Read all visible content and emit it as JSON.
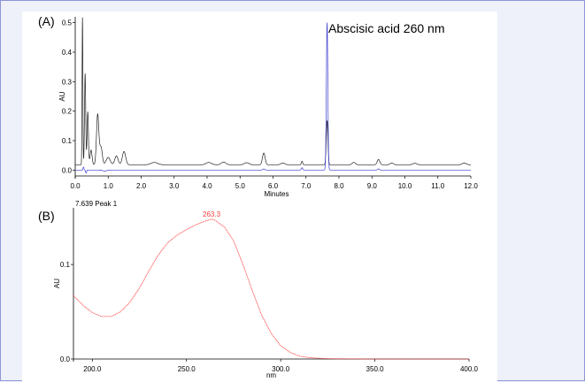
{
  "colors": {
    "page_bg": "#eef0fa",
    "border": "#8f96d8",
    "trace_black": "#222222",
    "trace_blue": "#3c3cd2",
    "spectrum_red": "#ff3b3b"
  },
  "chart_data": [
    {
      "type": "line",
      "panel_label": "(A)",
      "annotation": "Abscisic acid    260 nm",
      "xlabel": "Minutes",
      "ylabel": "AU",
      "xlim": [
        0,
        12
      ],
      "ylim": [
        -0.02,
        0.52
      ],
      "x_ticks": [
        "0.0",
        "1.0",
        "2.0",
        "3.0",
        "4.0",
        "5.0",
        "6.0",
        "7.0",
        "8.0",
        "9.0",
        "10.0",
        "11.0",
        "12.0"
      ],
      "y_ticks": [
        "0.0",
        "0.1",
        "0.2",
        "0.3",
        "0.4",
        "0.5"
      ],
      "series": [
        {
          "color": "#222222",
          "baseline": 0.018,
          "peaks": [
            [
              0.22,
              0.5,
              0.012
            ],
            [
              0.3,
              0.31,
              0.018
            ],
            [
              0.38,
              0.18,
              0.02
            ],
            [
              0.48,
              0.05,
              0.03
            ],
            [
              0.68,
              0.17,
              0.035
            ],
            [
              0.78,
              0.06,
              0.04
            ],
            [
              1.0,
              0.025,
              0.06
            ],
            [
              1.25,
              0.03,
              0.05
            ],
            [
              1.48,
              0.045,
              0.05
            ],
            [
              2.4,
              0.008,
              0.1
            ],
            [
              4.05,
              0.008,
              0.08
            ],
            [
              4.5,
              0.009,
              0.07
            ],
            [
              5.2,
              0.007,
              0.07
            ],
            [
              5.72,
              0.04,
              0.04
            ],
            [
              6.3,
              0.006,
              0.06
            ],
            [
              6.88,
              0.012,
              0.02
            ],
            [
              7.64,
              0.15,
              0.025
            ],
            [
              8.45,
              0.008,
              0.05
            ],
            [
              9.2,
              0.018,
              0.04
            ],
            [
              9.6,
              0.006,
              0.05
            ],
            [
              10.3,
              0.005,
              0.06
            ],
            [
              11.8,
              0.006,
              0.06
            ]
          ]
        },
        {
          "color": "#3c3cd2",
          "baseline": 0.0,
          "peaks": [
            [
              0.25,
              0.01,
              0.015
            ],
            [
              0.33,
              -0.01,
              0.015
            ],
            [
              0.9,
              -0.004,
              0.05
            ],
            [
              5.72,
              0.004,
              0.03
            ],
            [
              6.88,
              0.008,
              0.02
            ],
            [
              7.64,
              0.5,
              0.022
            ],
            [
              9.2,
              0.004,
              0.03
            ]
          ]
        }
      ]
    },
    {
      "type": "line",
      "panel_label": "(B)",
      "header": "7.639 Peak 1",
      "peak_label": "263.3",
      "xlabel": "nm",
      "ylabel": "AU",
      "xlim": [
        190,
        400
      ],
      "ylim": [
        0,
        0.16
      ],
      "x_ticks": [
        "200.0",
        "250.0",
        "300.0",
        "350.0",
        "400.0"
      ],
      "y_ticks": [
        "0.0",
        "0.1"
      ],
      "series": [
        {
          "name": "",
          "color": "#ff3b3b",
          "x": [
            190,
            195,
            200,
            205,
            210,
            215,
            220,
            225,
            230,
            235,
            240,
            245,
            250,
            255,
            260,
            263.3,
            265,
            270,
            275,
            280,
            285,
            290,
            295,
            300,
            305,
            310,
            315,
            320,
            325,
            330,
            340,
            350,
            360,
            370,
            380,
            390,
            400
          ],
          "y": [
            0.067,
            0.057,
            0.049,
            0.045,
            0.045,
            0.05,
            0.06,
            0.075,
            0.093,
            0.11,
            0.123,
            0.131,
            0.137,
            0.142,
            0.146,
            0.148,
            0.147,
            0.14,
            0.125,
            0.1,
            0.072,
            0.046,
            0.027,
            0.014,
            0.007,
            0.003,
            0.0015,
            0.0008,
            0.0004,
            0.0002,
            0.0001,
            0.0,
            0.0,
            0.0,
            0.0,
            0.0,
            0.0
          ]
        }
      ]
    }
  ]
}
